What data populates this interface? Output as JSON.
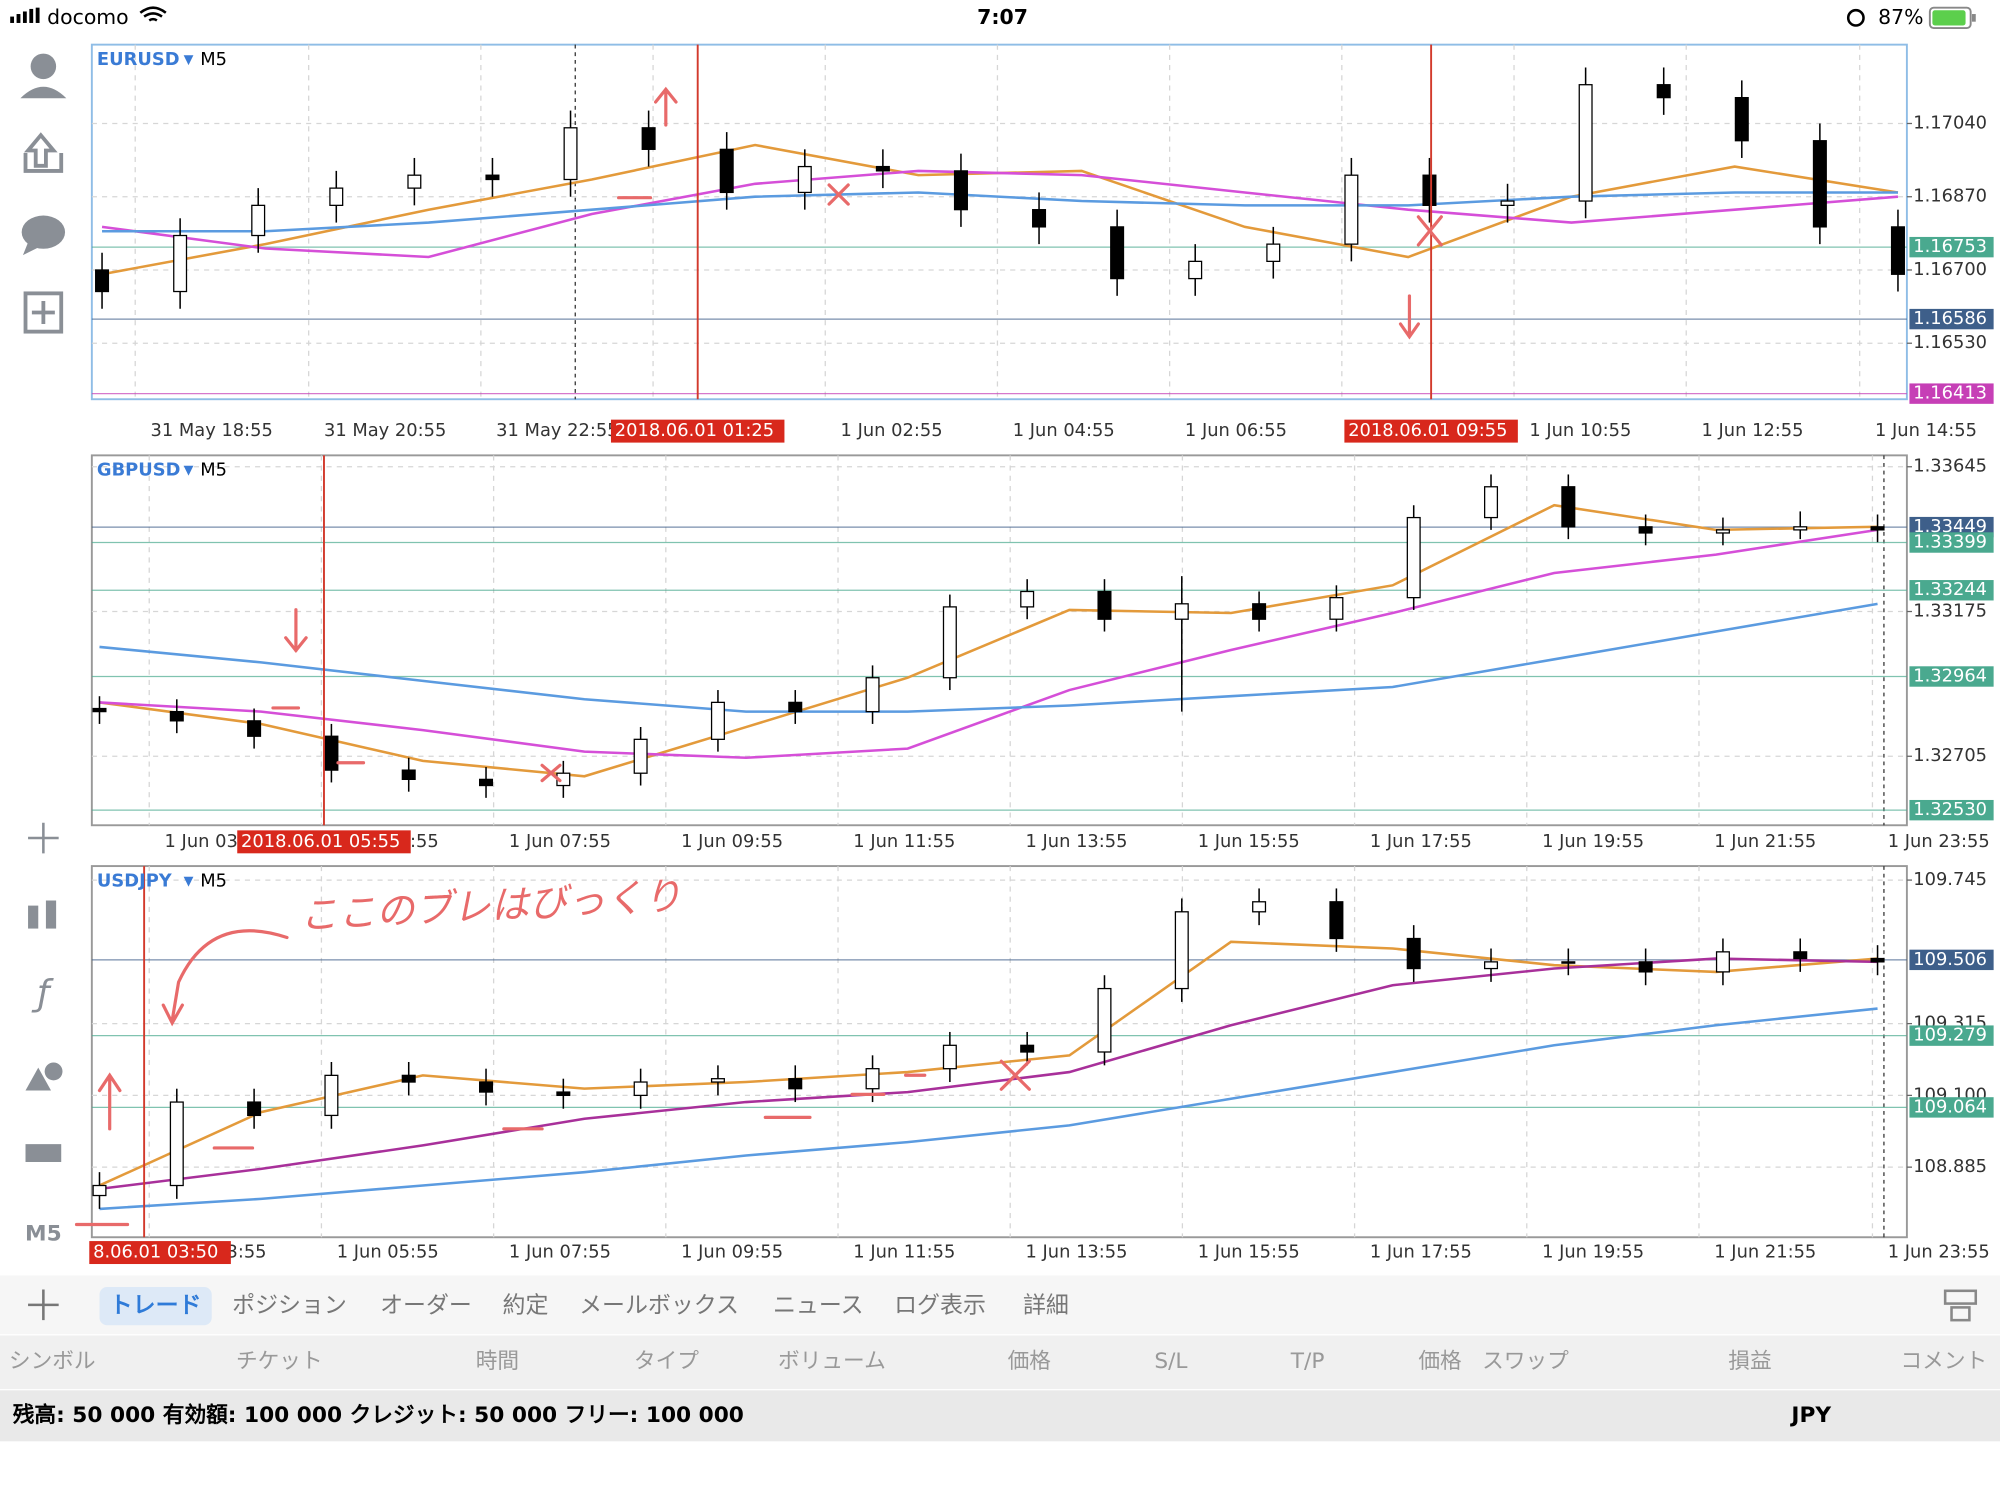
{
  "status_bar": {
    "carrier": "docomo",
    "time": "7:07",
    "battery": "87%"
  },
  "dropdown_icon": "▼",
  "side_timeframe": "M5",
  "annotation": "ここのブレはびっくり",
  "charts": [
    {
      "type": "candlestick",
      "symbol": "EURUSD",
      "timeframe": "M5",
      "ylim": [
        1.164,
        1.17223
      ],
      "yticks": [
        {
          "value": 1.1704,
          "label": "1.17040"
        },
        {
          "value": 1.1687,
          "label": "1.16870"
        },
        {
          "value": 1.167,
          "label": "1.16700"
        },
        {
          "value": 1.1653,
          "label": "1.16530"
        }
      ],
      "levels": [
        {
          "value": 1.16753,
          "color": "#4aa98f"
        },
        {
          "value": 1.16586,
          "color": "#3e5f8a"
        },
        {
          "value": 1.16413,
          "color": "#c63fb6"
        }
      ],
      "x_labels": [
        "31 May 18:55",
        "31 May 20:55",
        "31 May 22:55",
        "1 Jun 02:55",
        "1 Jun 04:55",
        "1 Jun 06:55",
        "1 Jun 10:55",
        "1 Jun 12:55",
        "1 Jun 14:55"
      ],
      "markers": [
        "2018.06.01 01:25",
        "2018.06.01 09:55"
      ],
      "candles": [
        [
          1.167,
          1.1674,
          1.1661,
          1.1665
        ],
        [
          1.1665,
          1.1682,
          1.1661,
          1.1678
        ],
        [
          1.1678,
          1.1689,
          1.1674,
          1.1685
        ],
        [
          1.1685,
          1.1693,
          1.1681,
          1.1689
        ],
        [
          1.1689,
          1.1696,
          1.1685,
          1.1692
        ],
        [
          1.1692,
          1.1696,
          1.1687,
          1.1691
        ],
        [
          1.1691,
          1.1707,
          1.1687,
          1.1703
        ],
        [
          1.1703,
          1.1707,
          1.1694,
          1.1698
        ],
        [
          1.1698,
          1.1702,
          1.1684,
          1.1688
        ],
        [
          1.1688,
          1.1698,
          1.1684,
          1.1694
        ],
        [
          1.1694,
          1.1698,
          1.1689,
          1.1693
        ],
        [
          1.1693,
          1.1697,
          1.168,
          1.1684
        ],
        [
          1.1684,
          1.1688,
          1.1676,
          1.168
        ],
        [
          1.168,
          1.1684,
          1.1664,
          1.1668
        ],
        [
          1.1668,
          1.1676,
          1.1664,
          1.1672
        ],
        [
          1.1672,
          1.168,
          1.1668,
          1.1676
        ],
        [
          1.1676,
          1.1696,
          1.1672,
          1.1692
        ],
        [
          1.1692,
          1.1696,
          1.1681,
          1.1685
        ],
        [
          1.1685,
          1.169,
          1.1681,
          1.1686
        ],
        [
          1.1686,
          1.1717,
          1.1682,
          1.1713
        ],
        [
          1.1713,
          1.1717,
          1.1706,
          1.171
        ],
        [
          1.171,
          1.1714,
          1.1696,
          1.17
        ],
        [
          1.17,
          1.1704,
          1.1676,
          1.168
        ],
        [
          1.168,
          1.1684,
          1.1665,
          1.1669
        ]
      ],
      "ma": [
        {
          "color": "#e39a3b",
          "values": [
            1.1669,
            1.1676,
            1.1684,
            1.1691,
            1.1699,
            1.1692,
            1.1693,
            1.168,
            1.1673,
            1.1687,
            1.1694,
            1.1688
          ]
        },
        {
          "color": "#d54fd8",
          "values": [
            1.168,
            1.1675,
            1.1673,
            1.1683,
            1.169,
            1.1693,
            1.1692,
            1.1688,
            1.1684,
            1.1681,
            1.1684,
            1.1687
          ]
        },
        {
          "color": "#5b9be0",
          "values": [
            1.1679,
            1.1679,
            1.1681,
            1.1684,
            1.1687,
            1.1688,
            1.1686,
            1.1685,
            1.1685,
            1.1687,
            1.1688,
            1.1688
          ]
        }
      ]
    },
    {
      "type": "candlestick",
      "symbol": "GBPUSD",
      "timeframe": "M5",
      "ylim": [
        1.32481,
        1.33682
      ],
      "yticks": [
        1.33645,
        1.33175,
        1.32705
      ],
      "levels": [
        {
          "value": 1.33449,
          "color": "#3e5f8a"
        },
        {
          "value": 1.33399,
          "color": "#4aa98f"
        },
        {
          "value": 1.33244,
          "color": "#4aa98f"
        },
        {
          "value": 1.32964,
          "color": "#4aa98f"
        },
        {
          "value": 1.3253,
          "label": "1.32530",
          "color": "#4aa98f"
        }
      ],
      "x_labels": [
        "1 Jun 03:55",
        "1 Jun 05:55",
        "1 Jun 07:55",
        "1 Jun 09:55",
        "1 Jun 11:55",
        "1 Jun 13:55",
        "1 Jun 15:55",
        "1 Jun 17:55",
        "1 Jun 19:55",
        "1 Jun 21:55",
        "1 Jun 23:55"
      ],
      "markers": [
        "2018.06.01 05:55"
      ],
      "candles": [
        [
          1.3286,
          1.329,
          1.3281,
          1.3285
        ],
        [
          1.3285,
          1.3289,
          1.3278,
          1.3282
        ],
        [
          1.3282,
          1.3286,
          1.3273,
          1.3277
        ],
        [
          1.3277,
          1.3281,
          1.3262,
          1.3266
        ],
        [
          1.3266,
          1.327,
          1.3259,
          1.3263
        ],
        [
          1.3263,
          1.3267,
          1.3257,
          1.3261
        ],
        [
          1.3261,
          1.3269,
          1.3257,
          1.3265
        ],
        [
          1.3265,
          1.328,
          1.3261,
          1.3276
        ],
        [
          1.3276,
          1.3292,
          1.3272,
          1.3288
        ],
        [
          1.3288,
          1.3292,
          1.3281,
          1.3285
        ],
        [
          1.3285,
          1.33,
          1.3281,
          1.3296
        ],
        [
          1.3296,
          1.3323,
          1.3292,
          1.3319
        ],
        [
          1.3319,
          1.3328,
          1.3315,
          1.3324
        ],
        [
          1.3324,
          1.3328,
          1.3311,
          1.3315
        ],
        [
          1.3315,
          1.3329,
          1.3285,
          1.332
        ],
        [
          1.332,
          1.3324,
          1.3311,
          1.3315
        ],
        [
          1.3315,
          1.3326,
          1.3311,
          1.3322
        ],
        [
          1.3322,
          1.3352,
          1.3318,
          1.3348
        ],
        [
          1.3348,
          1.3362,
          1.3344,
          1.3358
        ],
        [
          1.3358,
          1.3362,
          1.3341,
          1.3345
        ],
        [
          1.3345,
          1.3349,
          1.3339,
          1.3343
        ],
        [
          1.3343,
          1.3348,
          1.3339,
          1.3344
        ],
        [
          1.3344,
          1.335,
          1.3341,
          1.3345
        ],
        [
          1.3345,
          1.3349,
          1.334,
          1.3344
        ]
      ],
      "ma": [
        {
          "color": "#e39a3b",
          "values": [
            1.3288,
            1.3281,
            1.3269,
            1.3264,
            1.328,
            1.3296,
            1.3318,
            1.3317,
            1.3326,
            1.3352,
            1.3344,
            1.3345
          ]
        },
        {
          "color": "#d54fd8",
          "values": [
            1.3288,
            1.3285,
            1.3279,
            1.3272,
            1.327,
            1.3273,
            1.3292,
            1.3305,
            1.3317,
            1.333,
            1.3336,
            1.3344
          ]
        },
        {
          "color": "#5b9be0",
          "values": [
            1.3306,
            1.3301,
            1.3295,
            1.3289,
            1.3285,
            1.3285,
            1.3287,
            1.329,
            1.3293,
            1.3302,
            1.3311,
            1.332
          ]
        }
      ]
    },
    {
      "type": "candlestick",
      "symbol": "USDJPY",
      "timeframe": "M5",
      "ylim": [
        108.675,
        109.787
      ],
      "yticks": [
        109.745,
        109.315,
        {
          "value": 109.1,
          "label": "109.100"
        },
        108.885
      ],
      "levels": [
        {
          "value": 109.506,
          "color": "#3e5f8a"
        },
        {
          "value": 109.279,
          "color": "#4aa98f"
        },
        {
          "value": 109.064,
          "color": "#4aa98f"
        }
      ],
      "x_labels": [
        "1 Jun 03:55",
        "1 Jun 05:55",
        "1 Jun 07:55",
        "1 Jun 09:55",
        "1 Jun 11:55",
        "1 Jun 13:55",
        "1 Jun 15:55",
        "1 Jun 17:55",
        "1 Jun 19:55",
        "1 Jun 21:55",
        "1 Jun 23:55"
      ],
      "markers": [
        "8.06.01 03:50"
      ],
      "candles": [
        [
          108.8,
          108.87,
          108.76,
          108.83
        ],
        [
          108.83,
          109.12,
          108.79,
          109.08
        ],
        [
          109.08,
          109.12,
          109,
          109.04
        ],
        [
          109.04,
          109.2,
          109,
          109.16
        ],
        [
          109.16,
          109.2,
          109.1,
          109.14
        ],
        [
          109.14,
          109.18,
          109.07,
          109.11
        ],
        [
          109.11,
          109.15,
          109.06,
          109.1
        ],
        [
          109.1,
          109.18,
          109.06,
          109.14
        ],
        [
          109.14,
          109.19,
          109.1,
          109.15
        ],
        [
          109.15,
          109.19,
          109.08,
          109.12
        ],
        [
          109.12,
          109.22,
          109.08,
          109.18
        ],
        [
          109.18,
          109.29,
          109.14,
          109.25
        ],
        [
          109.25,
          109.29,
          109.19,
          109.23
        ],
        [
          109.23,
          109.46,
          109.19,
          109.42
        ],
        [
          109.42,
          109.69,
          109.38,
          109.65
        ],
        [
          109.65,
          109.72,
          109.61,
          109.68
        ],
        [
          109.68,
          109.72,
          109.53,
          109.57
        ],
        [
          109.57,
          109.61,
          109.44,
          109.48
        ],
        [
          109.48,
          109.54,
          109.44,
          109.5
        ],
        [
          109.5,
          109.54,
          109.46,
          109.5
        ],
        [
          109.5,
          109.54,
          109.43,
          109.47
        ],
        [
          109.47,
          109.57,
          109.43,
          109.53
        ],
        [
          109.53,
          109.57,
          109.47,
          109.51
        ],
        [
          109.51,
          109.55,
          109.46,
          109.5
        ]
      ],
      "ma": [
        {
          "color": "#e39a3b",
          "values": [
            108.83,
            109.05,
            109.16,
            109.12,
            109.14,
            109.17,
            109.22,
            109.56,
            109.54,
            109.49,
            109.47,
            109.51
          ]
        },
        {
          "color": "#a8309a",
          "values": [
            108.82,
            108.88,
            108.95,
            109.03,
            109.08,
            109.11,
            109.17,
            109.31,
            109.43,
            109.48,
            109.51,
            109.5
          ]
        },
        {
          "color": "#5b9be0",
          "values": [
            108.76,
            108.79,
            108.83,
            108.87,
            108.92,
            108.96,
            109.01,
            109.09,
            109.17,
            109.25,
            109.31,
            109.36
          ]
        }
      ]
    }
  ],
  "tabs": [
    "トレード",
    "ポジション",
    "オーダー",
    "約定",
    "メールボックス",
    "ニュース",
    "ログ表示",
    "詳細"
  ],
  "columns": [
    "シンボル",
    "チケット",
    "時間",
    "タイプ",
    "ボリューム",
    "価格",
    "S/L",
    "T/P",
    "価格",
    "スワップ",
    "損益",
    "コメント"
  ],
  "account_summary": "残高: 50 000 有効額: 100 000 クレジット: 50 000 フリー: 100 000",
  "currency": "JPY"
}
